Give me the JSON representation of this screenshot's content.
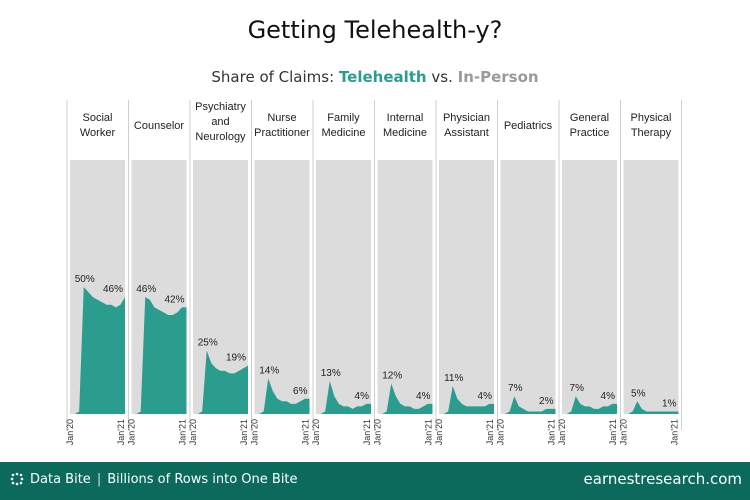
{
  "title": "Getting Telehealth-y?",
  "subtitle": {
    "prefix": "Share of Claims: ",
    "telehealth": "Telehealth",
    "vs": " vs. ",
    "in_person": "In-Person"
  },
  "colors": {
    "telehealth": "#2a9d8f",
    "in_person": "#dcdcdc",
    "footer": "#0b6a5c"
  },
  "footer": {
    "left_brand": "Data Bite",
    "left_tagline": "Billions of Rows into One Bite",
    "right_url": "earnestresearch.com"
  },
  "chart_data": {
    "type": "area",
    "title": "Getting Telehealth-y?",
    "subtitle": "Share of Claims: Telehealth vs. In-Person",
    "x_ticks": [
      "Jan'20",
      "Jan'21"
    ],
    "ylim": [
      0,
      100
    ],
    "series": [
      {
        "name": "Social Worker",
        "label_lines": [
          "Social",
          "Worker"
        ],
        "peak_label": "50%",
        "end_label": "46%",
        "values": [
          0,
          0,
          1,
          50,
          48,
          46,
          45,
          44,
          43,
          43,
          42,
          43,
          46
        ]
      },
      {
        "name": "Counselor",
        "label_lines": [
          "Counselor"
        ],
        "peak_label": "46%",
        "end_label": "42%",
        "values": [
          0,
          0,
          1,
          46,
          45,
          42,
          41,
          40,
          39,
          39,
          40,
          42,
          42
        ]
      },
      {
        "name": "Psychiatry and Neurology",
        "label_lines": [
          "Psychiatry",
          "and",
          "Neurology"
        ],
        "peak_label": "25%",
        "end_label": "19%",
        "values": [
          0,
          0,
          1,
          25,
          20,
          18,
          17,
          17,
          16,
          16,
          17,
          18,
          19
        ]
      },
      {
        "name": "Nurse Practitioner",
        "label_lines": [
          "Nurse",
          "Practitioner"
        ],
        "peak_label": "14%",
        "end_label": "6%",
        "values": [
          0,
          0,
          1,
          14,
          9,
          6,
          5,
          5,
          4,
          4,
          5,
          6,
          6
        ]
      },
      {
        "name": "Family Medicine",
        "label_lines": [
          "Family",
          "Medicine"
        ],
        "peak_label": "13%",
        "end_label": "4%",
        "values": [
          0,
          0,
          1,
          13,
          7,
          4,
          3,
          3,
          2,
          3,
          3,
          4,
          4
        ]
      },
      {
        "name": "Internal Medicine",
        "label_lines": [
          "Internal",
          "Medicine"
        ],
        "peak_label": "12%",
        "end_label": "4%",
        "values": [
          0,
          0,
          1,
          12,
          7,
          4,
          3,
          3,
          2,
          2,
          3,
          4,
          4
        ]
      },
      {
        "name": "Physician Assistant",
        "label_lines": [
          "Physician",
          "Assistant"
        ],
        "peak_label": "11%",
        "end_label": "4%",
        "values": [
          0,
          0,
          1,
          11,
          6,
          4,
          3,
          3,
          3,
          3,
          3,
          4,
          4
        ]
      },
      {
        "name": "Pediatrics",
        "label_lines": [
          "Pediatrics"
        ],
        "peak_label": "7%",
        "end_label": "2%",
        "values": [
          0,
          0,
          1,
          7,
          3,
          2,
          1,
          1,
          1,
          1,
          2,
          2,
          2
        ]
      },
      {
        "name": "General Practice",
        "label_lines": [
          "General",
          "Practice"
        ],
        "peak_label": "7%",
        "end_label": "4%",
        "values": [
          0,
          0,
          1,
          7,
          4,
          3,
          3,
          2,
          2,
          3,
          3,
          4,
          4
        ]
      },
      {
        "name": "Physical Therapy",
        "label_lines": [
          "Physical",
          "Therapy"
        ],
        "peak_label": "5%",
        "end_label": "1%",
        "values": [
          0,
          0,
          1,
          5,
          2,
          1,
          1,
          1,
          1,
          1,
          1,
          1,
          1
        ]
      }
    ]
  }
}
